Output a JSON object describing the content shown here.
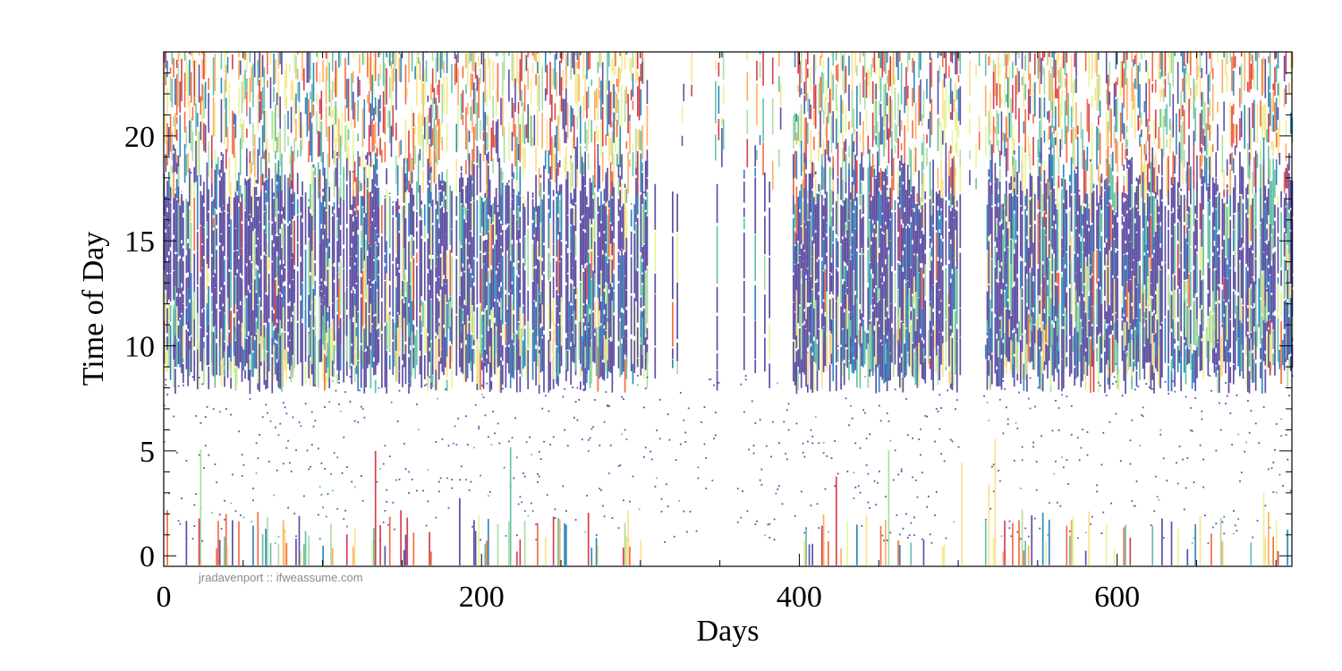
{
  "chart_data": {
    "type": "heatmap",
    "xlabel": "Days",
    "ylabel": "Time of Day",
    "xlim": [
      0,
      710
    ],
    "ylim": [
      -0.5,
      24
    ],
    "xticks": [
      {
        "value": 0,
        "label": "0"
      },
      {
        "value": 200,
        "label": "200"
      },
      {
        "value": 400,
        "label": "400"
      },
      {
        "value": 600,
        "label": "600"
      }
    ],
    "yticks": [
      {
        "value": 0,
        "label": "0"
      },
      {
        "value": 5,
        "label": "5"
      },
      {
        "value": 10,
        "label": "10"
      },
      {
        "value": 15,
        "label": "15"
      },
      {
        "value": 20,
        "label": "20"
      }
    ],
    "colormap": [
      "#5e4fa2",
      "#3288bd",
      "#66c2a5",
      "#abdda4",
      "#e6f598",
      "#fee08b",
      "#fdae61",
      "#f46d43",
      "#d53e4f"
    ],
    "active_band": {
      "start_hour": 8.5,
      "end_hour": 17.5
    },
    "gaps": [
      {
        "start_day": 305,
        "end_day": 395,
        "label": ""
      },
      {
        "start_day": 503,
        "end_day": 515,
        "label": ""
      }
    ],
    "grid": false,
    "legend": "none",
    "annotation": "jradavenport :: ifweassume.com"
  }
}
